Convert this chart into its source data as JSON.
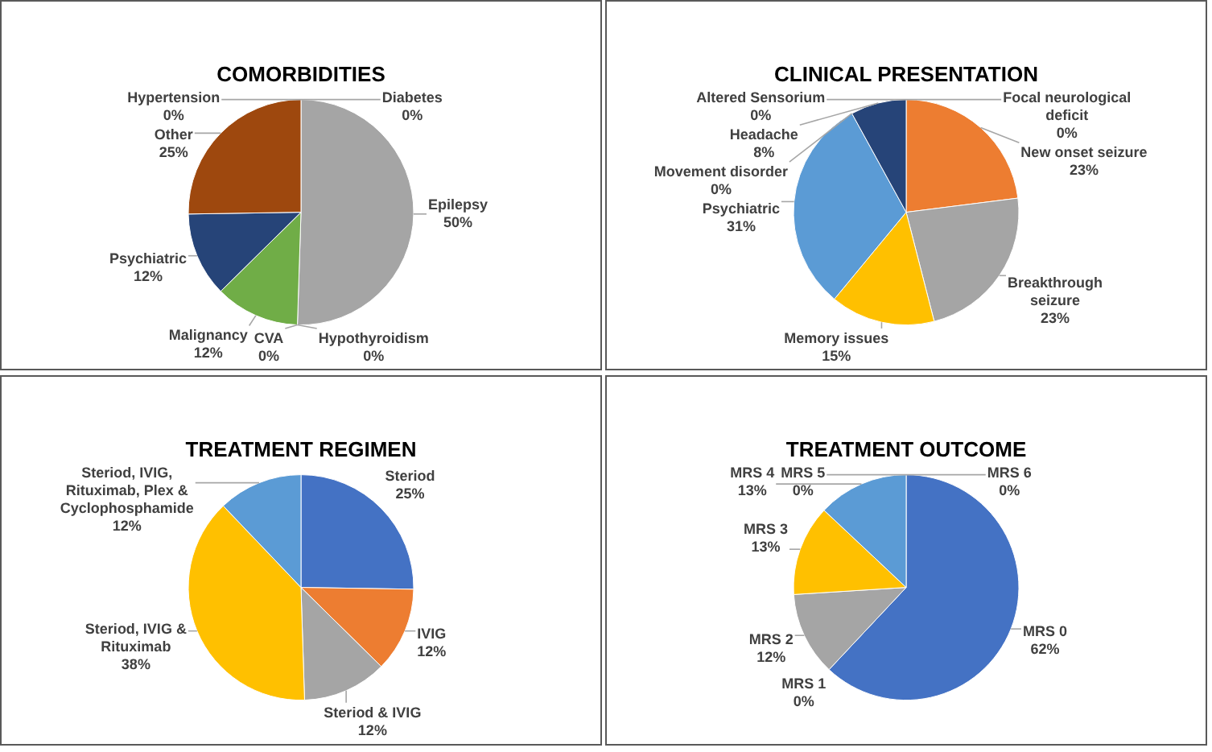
{
  "chart_data": [
    {
      "type": "pie",
      "title": "COMORBIDITIES",
      "categories": [
        "Diabetes",
        "Epilepsy",
        "Hypothyroidism",
        "CVA",
        "Malignancy",
        "Psychiatric",
        "Other",
        "Hypertension"
      ],
      "values": [
        0,
        50,
        0,
        0,
        12,
        12,
        25,
        0
      ],
      "colors": [
        "#ed7d31",
        "#a5a5a5",
        "#ffc000",
        "#5b9bd5",
        "#70ad47",
        "#264478",
        "#9e480e",
        "#4472c4"
      ],
      "value_labels": [
        "0%",
        "50%",
        "0%",
        "0%",
        "12%",
        "12%",
        "25%",
        "0%"
      ]
    },
    {
      "type": "pie",
      "title": "CLINICAL PRESENTATION",
      "categories": [
        "Focal neurological deficit",
        "New onset seizure",
        "Breakthrough seizure",
        "Memory issues",
        "Psychiatric",
        "Movement disorder",
        "Headache",
        "Altered Sensorium"
      ],
      "values": [
        0,
        23,
        23,
        15,
        31,
        0,
        8,
        0
      ],
      "colors": [
        "#4472c4",
        "#ed7d31",
        "#a5a5a5",
        "#ffc000",
        "#5b9bd5",
        "#70ad47",
        "#264478",
        "#9e480e"
      ],
      "value_labels": [
        "0%",
        "23%",
        "23%",
        "15%",
        "31%",
        "0%",
        "8%",
        "0%"
      ]
    },
    {
      "type": "pie",
      "title": "TREATMENT REGIMEN",
      "categories": [
        "Steriod",
        "IVIG",
        "Steriod & IVIG",
        "Steriod, IVIG & Rituximab",
        "Steriod, IVIG, Rituximab, Plex & Cyclophosphamide"
      ],
      "values": [
        25,
        12,
        12,
        38,
        12
      ],
      "colors": [
        "#4472c4",
        "#ed7d31",
        "#a5a5a5",
        "#ffc000",
        "#5b9bd5"
      ],
      "value_labels": [
        "25%",
        "12%",
        "12%",
        "38%",
        "12%"
      ]
    },
    {
      "type": "pie",
      "title": "TREATMENT OUTCOME",
      "categories": [
        "MRS 0",
        "MRS 1",
        "MRS 2",
        "MRS 3",
        "MRS 4",
        "MRS 5",
        "MRS 6"
      ],
      "values": [
        62,
        0,
        12,
        13,
        13,
        0,
        0
      ],
      "colors": [
        "#4472c4",
        "#ed7d31",
        "#a5a5a5",
        "#ffc000",
        "#5b9bd5",
        "#70ad47",
        "#264478"
      ],
      "value_labels": [
        "62%",
        "0%",
        "12%",
        "13%",
        "13%",
        "0%",
        "0%"
      ]
    }
  ]
}
